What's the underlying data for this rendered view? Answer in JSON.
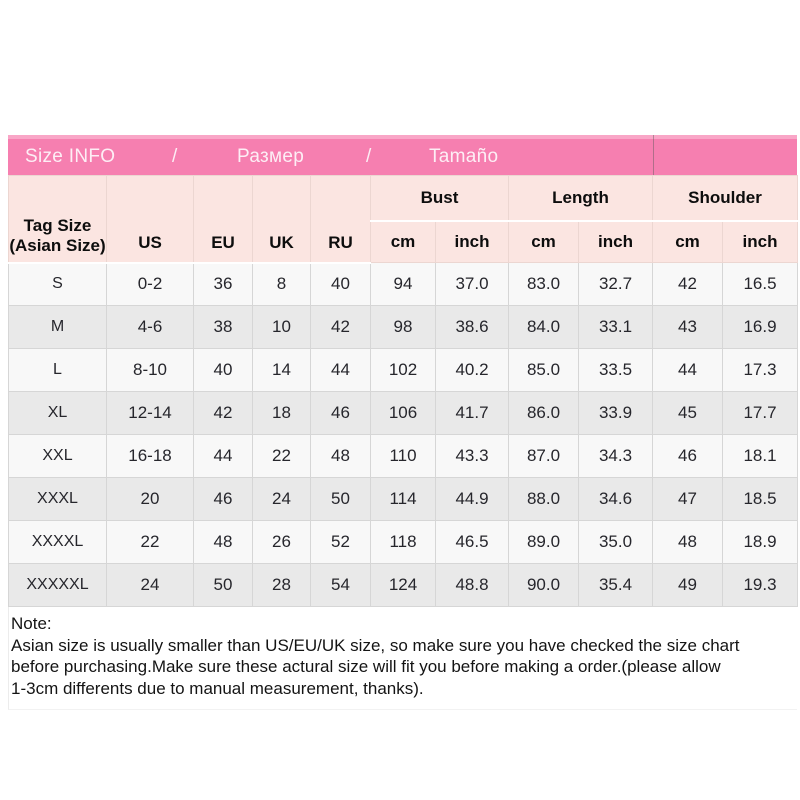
{
  "colors": {
    "banner_pink": "#f67fb0",
    "banner_pink_light": "#f9a6c7",
    "banner_text": "#fdeef5",
    "header_cell_pink": "#fbe5e1",
    "row_light": "#f8f8f8",
    "row_dark": "#e9e9e9",
    "grid_line": "#d6d6d6",
    "body_text": "#26262c"
  },
  "banner": {
    "size_info": "Size INFO",
    "separator1": "/",
    "razmer": "Размер",
    "separator2": "/",
    "tamano": "Tamaño"
  },
  "table": {
    "tag_size_header": {
      "line1": "Tag Size",
      "line2": "(Asian Size)"
    },
    "size_system_headers": [
      "US",
      "EU",
      "UK",
      "RU"
    ],
    "measure_groups": [
      {
        "label": "Bust",
        "units": [
          "cm",
          "inch"
        ]
      },
      {
        "label": "Length",
        "units": [
          "cm",
          "inch"
        ]
      },
      {
        "label": "Shoulder",
        "units": [
          "cm",
          "inch"
        ]
      }
    ],
    "rows": [
      {
        "tag": "S",
        "us": "0-2",
        "eu": "36",
        "uk": "8",
        "ru": "40",
        "bust_cm": "94",
        "bust_inch": "37.0",
        "length_cm": "83.0",
        "length_inch": "32.7",
        "shoulder_cm": "42",
        "shoulder_inch": "16.5"
      },
      {
        "tag": "M",
        "us": "4-6",
        "eu": "38",
        "uk": "10",
        "ru": "42",
        "bust_cm": "98",
        "bust_inch": "38.6",
        "length_cm": "84.0",
        "length_inch": "33.1",
        "shoulder_cm": "43",
        "shoulder_inch": "16.9"
      },
      {
        "tag": "L",
        "us": "8-10",
        "eu": "40",
        "uk": "14",
        "ru": "44",
        "bust_cm": "102",
        "bust_inch": "40.2",
        "length_cm": "85.0",
        "length_inch": "33.5",
        "shoulder_cm": "44",
        "shoulder_inch": "17.3"
      },
      {
        "tag": "XL",
        "us": "12-14",
        "eu": "42",
        "uk": "18",
        "ru": "46",
        "bust_cm": "106",
        "bust_inch": "41.7",
        "length_cm": "86.0",
        "length_inch": "33.9",
        "shoulder_cm": "45",
        "shoulder_inch": "17.7"
      },
      {
        "tag": "XXL",
        "us": "16-18",
        "eu": "44",
        "uk": "22",
        "ru": "48",
        "bust_cm": "110",
        "bust_inch": "43.3",
        "length_cm": "87.0",
        "length_inch": "34.3",
        "shoulder_cm": "46",
        "shoulder_inch": "18.1"
      },
      {
        "tag": "XXXL",
        "us": "20",
        "eu": "46",
        "uk": "24",
        "ru": "50",
        "bust_cm": "114",
        "bust_inch": "44.9",
        "length_cm": "88.0",
        "length_inch": "34.6",
        "shoulder_cm": "47",
        "shoulder_inch": "18.5"
      },
      {
        "tag": "XXXXL",
        "us": "22",
        "eu": "48",
        "uk": "26",
        "ru": "52",
        "bust_cm": "118",
        "bust_inch": "46.5",
        "length_cm": "89.0",
        "length_inch": "35.0",
        "shoulder_cm": "48",
        "shoulder_inch": "18.9"
      },
      {
        "tag": "XXXXXL",
        "us": "24",
        "eu": "50",
        "uk": "28",
        "ru": "54",
        "bust_cm": "124",
        "bust_inch": "48.8",
        "length_cm": "90.0",
        "length_inch": "35.4",
        "shoulder_cm": "49",
        "shoulder_inch": "19.3"
      }
    ]
  },
  "note": {
    "title": "Note:",
    "lines": [
      "Asian size is usually smaller than US/EU/UK size, so make sure you have checked the size chart",
      "before purchasing.Make sure these actural size will fit you before making a order.(please allow",
      "1-3cm differents due to manual measurement, thanks)."
    ]
  }
}
